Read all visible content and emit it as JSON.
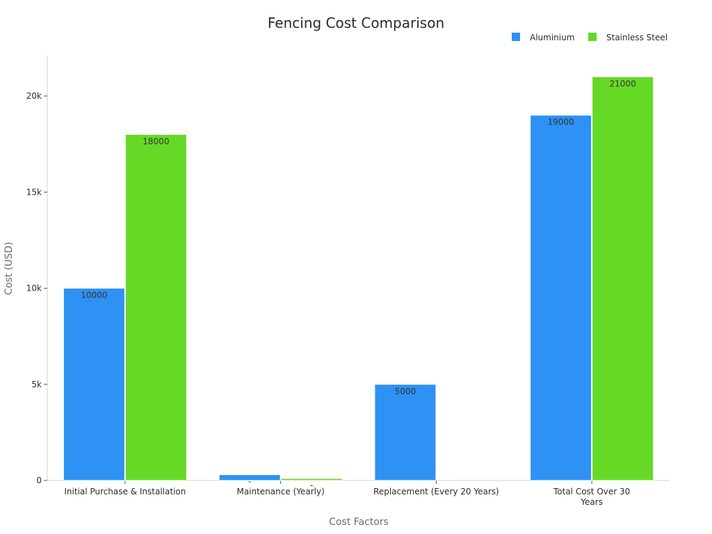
{
  "chart_data": {
    "type": "bar",
    "title": "Fencing Cost Comparison",
    "xlabel": "Cost Factors",
    "ylabel": "Cost (USD)",
    "categories": [
      [
        "Initial Purchase & Installation"
      ],
      [
        "Maintenance (Yearly)"
      ],
      [
        "Replacement (Every 20 Years)"
      ],
      [
        "Total Cost Over 30",
        "Years"
      ]
    ],
    "series": [
      {
        "name": "Aluminium",
        "color": "#2e91f4",
        "values": [
          10000,
          300,
          5000,
          19000
        ],
        "labels": [
          "10000",
          "-",
          "5000",
          "19000"
        ]
      },
      {
        "name": "Stainless Steel",
        "color": "#66d926",
        "values": [
          18000,
          100,
          0,
          21000
        ],
        "labels": [
          "18000",
          "-",
          "",
          "21000"
        ]
      }
    ],
    "ylim": [
      0,
      22100
    ],
    "yticks": [
      {
        "value": 0,
        "label": "0"
      },
      {
        "value": 5000,
        "label": "5k"
      },
      {
        "value": 10000,
        "label": "10k"
      },
      {
        "value": 15000,
        "label": "15k"
      },
      {
        "value": 20000,
        "label": "20k"
      }
    ],
    "legend_position": "top-right",
    "grid": false
  }
}
